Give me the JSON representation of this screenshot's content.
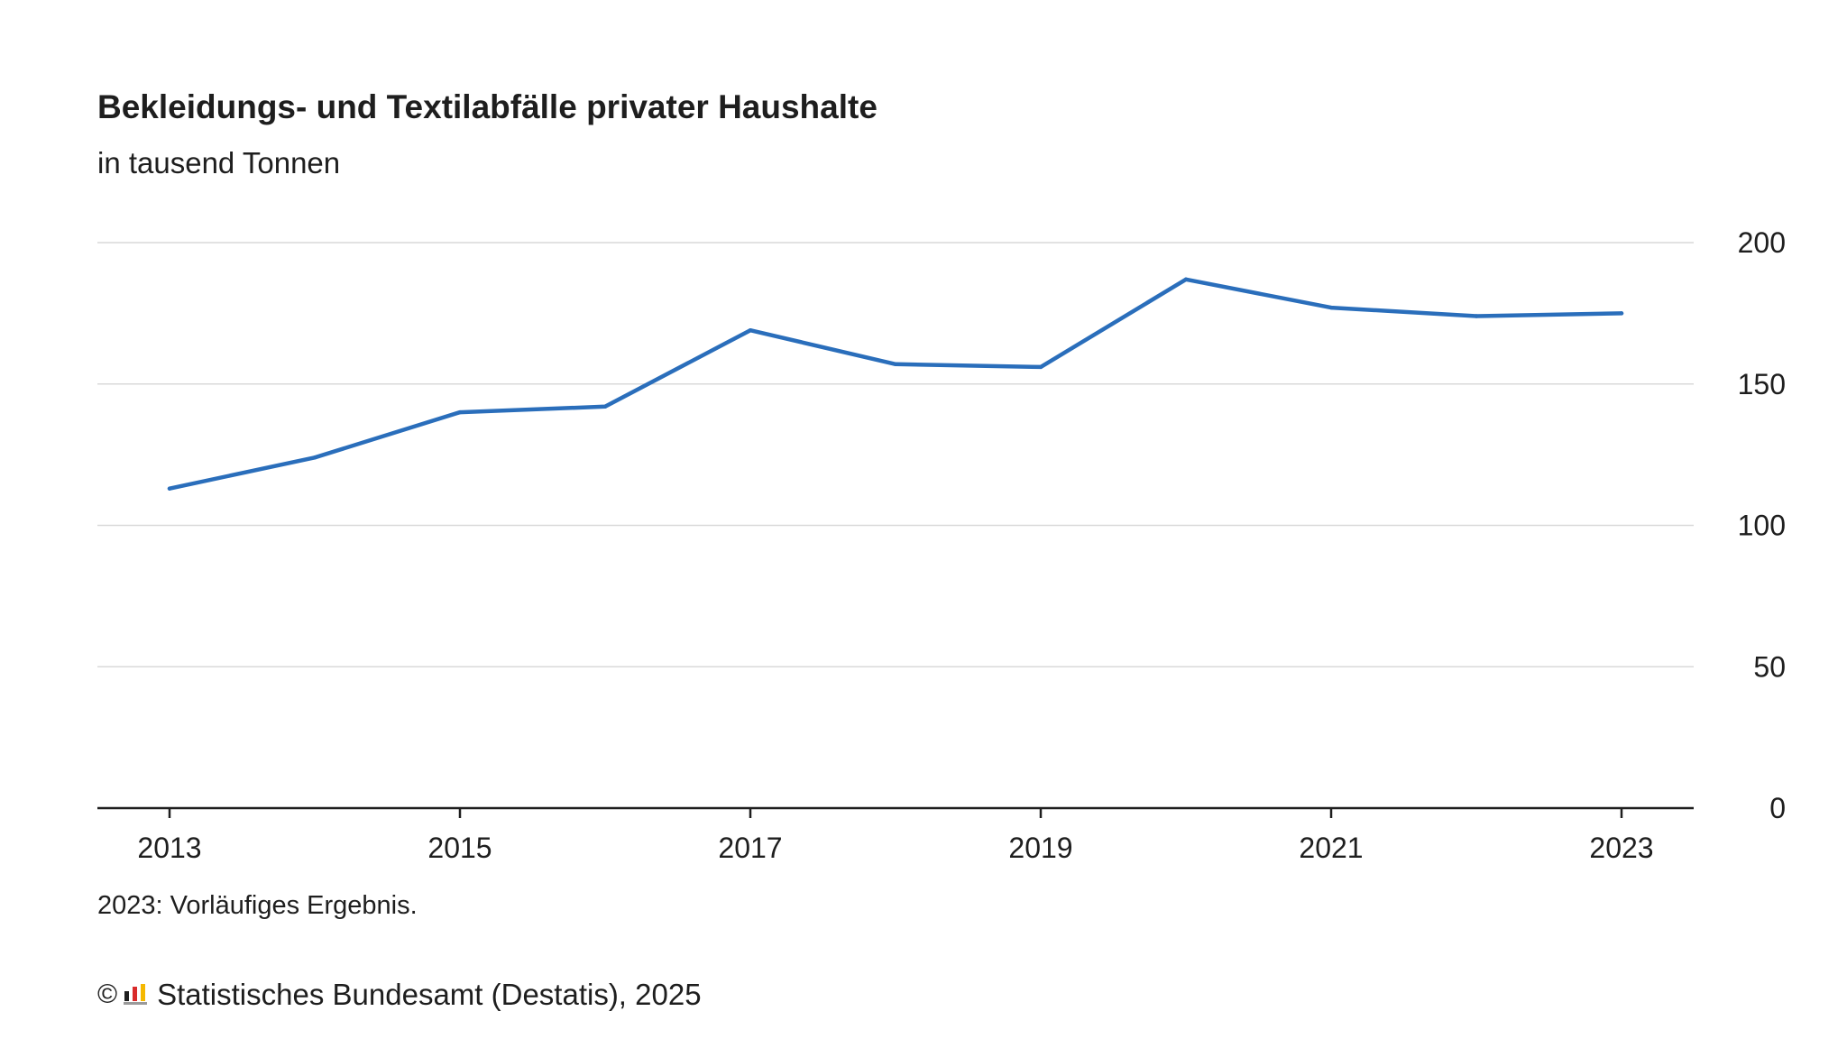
{
  "colors": {
    "line": "#2a6ebb",
    "grid": "#d9d9d9",
    "axis": "#1e1e1e",
    "text": "#1e1e1e"
  },
  "chart_data": {
    "type": "line",
    "title": "Bekleidungs- und Textilabfälle privater Haushalte",
    "subtitle": "in tausend Tonnen",
    "x": [
      2013,
      2014,
      2015,
      2016,
      2017,
      2018,
      2019,
      2020,
      2021,
      2022,
      2023
    ],
    "series": [
      {
        "values": [
          113,
          124,
          140,
          142,
          169,
          157,
          156,
          187,
          177,
          174,
          175
        ]
      }
    ],
    "x_tick_labels": [
      "2013",
      "2015",
      "2017",
      "2019",
      "2021",
      "2023"
    ],
    "y_tick_labels": [
      "0",
      "50",
      "100",
      "150",
      "200"
    ],
    "ylim": [
      0,
      200
    ],
    "y_axis_position": "right",
    "grid": true,
    "footnote": "2023: Vorläufiges Ergebnis."
  },
  "source": {
    "copyright_symbol": "©",
    "logo_icon": "destatis-logo-icon",
    "text": "Statistisches Bundesamt (Destatis), 2025"
  }
}
